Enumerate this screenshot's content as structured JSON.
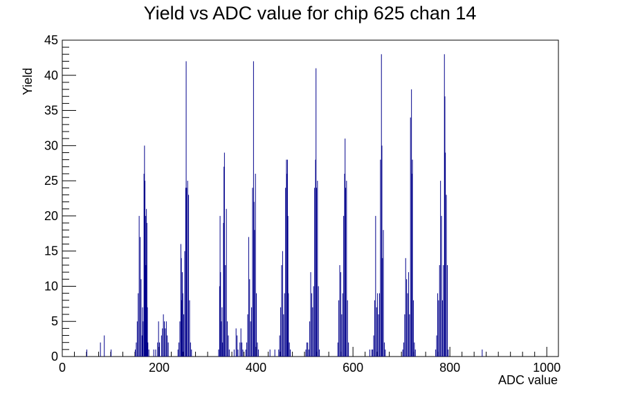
{
  "chart_data": {
    "type": "bar",
    "title": "Yield vs ADC value for chip 625 chan 14",
    "xlabel": "ADC value",
    "ylabel": "Yield",
    "xlim": [
      0,
      1024
    ],
    "ylim": [
      0,
      45
    ],
    "x_ticks": [
      0,
      200,
      400,
      600,
      800,
      1000
    ],
    "y_ticks": [
      0,
      5,
      10,
      15,
      20,
      25,
      30,
      35,
      40,
      45
    ],
    "bin_width": 1,
    "grid": false,
    "legend": "none",
    "line_color": "#00008b",
    "bins": [
      [
        50,
        1
      ],
      [
        78,
        2
      ],
      [
        86,
        3
      ],
      [
        100,
        1
      ],
      [
        150,
        1
      ],
      [
        152,
        2
      ],
      [
        154,
        5
      ],
      [
        156,
        9
      ],
      [
        158,
        20
      ],
      [
        160,
        17
      ],
      [
        162,
        11
      ],
      [
        164,
        3
      ],
      [
        165,
        7
      ],
      [
        166,
        5
      ],
      [
        168,
        26
      ],
      [
        169,
        30
      ],
      [
        170,
        25
      ],
      [
        171,
        20
      ],
      [
        172,
        13
      ],
      [
        173,
        21
      ],
      [
        174,
        19
      ],
      [
        175,
        7
      ],
      [
        176,
        2
      ],
      [
        178,
        1
      ],
      [
        188,
        1
      ],
      [
        192,
        1
      ],
      [
        196,
        2
      ],
      [
        198,
        5
      ],
      [
        200,
        2
      ],
      [
        202,
        0
      ],
      [
        204,
        3
      ],
      [
        206,
        4
      ],
      [
        208,
        6
      ],
      [
        210,
        5
      ],
      [
        212,
        4
      ],
      [
        214,
        5
      ],
      [
        216,
        3
      ],
      [
        218,
        2
      ],
      [
        238,
        1
      ],
      [
        240,
        2
      ],
      [
        242,
        5
      ],
      [
        244,
        16
      ],
      [
        245,
        14
      ],
      [
        246,
        8
      ],
      [
        247,
        12
      ],
      [
        248,
        9
      ],
      [
        250,
        6
      ],
      [
        252,
        15
      ],
      [
        254,
        24
      ],
      [
        255,
        42
      ],
      [
        256,
        24
      ],
      [
        258,
        25
      ],
      [
        260,
        23
      ],
      [
        262,
        8
      ],
      [
        264,
        2
      ],
      [
        266,
        1
      ],
      [
        322,
        1
      ],
      [
        324,
        10
      ],
      [
        325,
        20
      ],
      [
        326,
        12
      ],
      [
        328,
        5
      ],
      [
        329,
        7
      ],
      [
        330,
        2
      ],
      [
        332,
        19
      ],
      [
        333,
        27
      ],
      [
        334,
        29
      ],
      [
        336,
        13
      ],
      [
        338,
        21
      ],
      [
        340,
        5
      ],
      [
        342,
        3
      ],
      [
        344,
        1
      ],
      [
        354,
        1
      ],
      [
        358,
        4
      ],
      [
        360,
        3
      ],
      [
        362,
        1
      ],
      [
        366,
        2
      ],
      [
        368,
        4
      ],
      [
        370,
        2
      ],
      [
        372,
        1
      ],
      [
        378,
        1
      ],
      [
        380,
        2
      ],
      [
        382,
        6
      ],
      [
        384,
        17
      ],
      [
        386,
        11
      ],
      [
        388,
        5
      ],
      [
        390,
        7
      ],
      [
        392,
        24
      ],
      [
        394,
        42
      ],
      [
        395,
        22
      ],
      [
        396,
        18
      ],
      [
        398,
        26
      ],
      [
        400,
        9
      ],
      [
        402,
        2
      ],
      [
        404,
        1
      ],
      [
        428,
        1
      ],
      [
        438,
        1
      ],
      [
        446,
        1
      ],
      [
        448,
        3
      ],
      [
        450,
        7
      ],
      [
        452,
        13
      ],
      [
        454,
        15
      ],
      [
        456,
        6
      ],
      [
        458,
        9
      ],
      [
        460,
        24
      ],
      [
        462,
        28
      ],
      [
        463,
        26
      ],
      [
        464,
        28
      ],
      [
        465,
        20
      ],
      [
        466,
        9
      ],
      [
        468,
        2
      ],
      [
        470,
        1
      ],
      [
        502,
        1
      ],
      [
        504,
        2
      ],
      [
        506,
        2
      ],
      [
        508,
        1
      ],
      [
        510,
        5
      ],
      [
        512,
        12
      ],
      [
        514,
        9
      ],
      [
        516,
        7
      ],
      [
        518,
        10
      ],
      [
        520,
        24
      ],
      [
        522,
        28
      ],
      [
        523,
        41
      ],
      [
        524,
        24
      ],
      [
        526,
        25
      ],
      [
        528,
        10
      ],
      [
        530,
        1
      ],
      [
        568,
        2
      ],
      [
        570,
        8
      ],
      [
        572,
        13
      ],
      [
        574,
        12
      ],
      [
        576,
        6
      ],
      [
        578,
        9
      ],
      [
        580,
        20
      ],
      [
        582,
        26
      ],
      [
        583,
        31
      ],
      [
        584,
        24
      ],
      [
        586,
        25
      ],
      [
        588,
        8
      ],
      [
        590,
        2
      ],
      [
        634,
        1
      ],
      [
        638,
        1
      ],
      [
        640,
        1
      ],
      [
        642,
        3
      ],
      [
        644,
        8
      ],
      [
        646,
        20
      ],
      [
        648,
        7
      ],
      [
        650,
        9
      ],
      [
        652,
        6
      ],
      [
        654,
        9
      ],
      [
        656,
        28
      ],
      [
        658,
        43
      ],
      [
        659,
        30
      ],
      [
        660,
        14
      ],
      [
        662,
        18
      ],
      [
        664,
        2
      ],
      [
        666,
        1
      ],
      [
        702,
        1
      ],
      [
        704,
        2
      ],
      [
        706,
        6
      ],
      [
        708,
        14
      ],
      [
        710,
        11
      ],
      [
        712,
        9
      ],
      [
        714,
        12
      ],
      [
        716,
        6
      ],
      [
        718,
        34
      ],
      [
        720,
        38
      ],
      [
        721,
        26
      ],
      [
        722,
        28
      ],
      [
        724,
        8
      ],
      [
        726,
        2
      ],
      [
        728,
        1
      ],
      [
        770,
        1
      ],
      [
        772,
        3
      ],
      [
        774,
        9
      ],
      [
        776,
        8
      ],
      [
        778,
        13
      ],
      [
        780,
        25
      ],
      [
        782,
        20
      ],
      [
        784,
        8
      ],
      [
        786,
        13
      ],
      [
        788,
        43
      ],
      [
        789,
        37
      ],
      [
        790,
        29
      ],
      [
        792,
        23
      ],
      [
        794,
        13
      ],
      [
        796,
        1
      ],
      [
        866,
        1
      ]
    ]
  }
}
